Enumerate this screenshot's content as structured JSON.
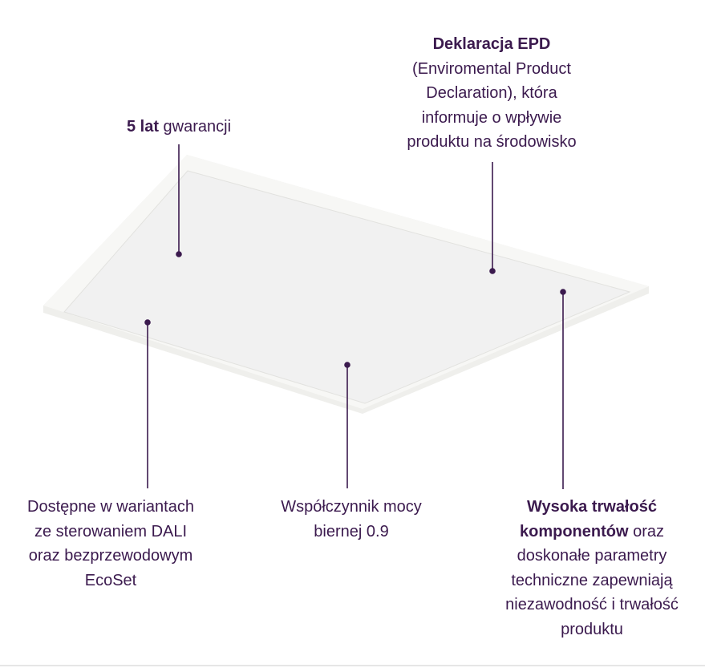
{
  "colors": {
    "text": "#3b1a4e",
    "line": "#3b1a4e",
    "panel": "#f6f6f4"
  },
  "image": {
    "subject": "led-panel-illustration"
  },
  "callouts": {
    "warranty": {
      "bold": "5 lat",
      "rest": " gwarancji"
    },
    "epd": {
      "bold": "Deklaracja EPD",
      "lines": [
        "(Enviromental Product",
        "Declaration), która",
        "informuje o wpływie",
        "produktu na środowisko"
      ]
    },
    "dali": {
      "lines": [
        "Dostępne w wariantach",
        "ze sterowaniem DALI",
        "oraz bezprzewodowym",
        "EcoSet"
      ]
    },
    "power_factor": {
      "lines": [
        "Współczynnik mocy",
        "biernej 0.9"
      ]
    },
    "durability": {
      "bold1": "Wysoka trwałość",
      "bold2": "komponentów",
      "rest2": " oraz",
      "lines": [
        "doskonałe parametry",
        "techniczne zapewniają",
        "niezawodność i trwałość",
        "produktu"
      ]
    }
  }
}
